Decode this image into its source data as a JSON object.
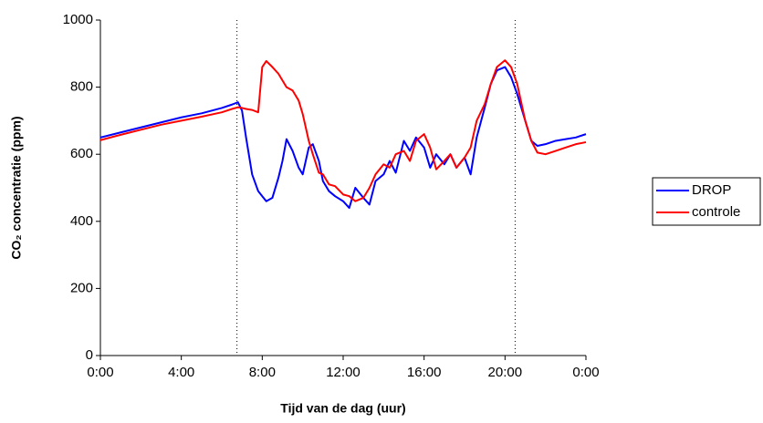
{
  "chart_data": {
    "type": "line",
    "xlabel": "Tijd van de dag (uur)",
    "ylabel": "CO₂ concentratie (ppm)",
    "x": [
      0,
      1,
      2,
      3,
      4,
      5,
      6,
      6.5,
      6.8,
      7.0,
      7.2,
      7.5,
      7.8,
      8.0,
      8.2,
      8.5,
      8.8,
      9.0,
      9.2,
      9.5,
      9.8,
      10.0,
      10.3,
      10.5,
      10.8,
      11.0,
      11.3,
      11.6,
      12.0,
      12.3,
      12.6,
      13.0,
      13.3,
      13.6,
      14.0,
      14.3,
      14.6,
      15.0,
      15.3,
      15.6,
      16.0,
      16.3,
      16.6,
      17.0,
      17.3,
      17.6,
      18.0,
      18.3,
      18.6,
      19.0,
      19.3,
      19.6,
      20.0,
      20.3,
      20.6,
      21.0,
      21.3,
      21.6,
      22.0,
      22.5,
      23.0,
      23.5,
      24
    ],
    "series": [
      {
        "name": "DROP",
        "color": "#0000ff",
        "values": [
          650,
          665,
          680,
          695,
          710,
          722,
          738,
          748,
          755,
          730,
          650,
          540,
          490,
          475,
          460,
          470,
          530,
          580,
          645,
          610,
          560,
          540,
          620,
          630,
          580,
          520,
          490,
          475,
          460,
          440,
          500,
          470,
          450,
          520,
          540,
          580,
          545,
          640,
          610,
          650,
          620,
          560,
          600,
          570,
          600,
          560,
          590,
          540,
          650,
          740,
          810,
          850,
          860,
          830,
          780,
          700,
          640,
          625,
          630,
          640,
          645,
          650,
          660
        ]
      },
      {
        "name": "controle",
        "color": "#ff0000",
        "values": [
          642,
          658,
          673,
          688,
          700,
          712,
          725,
          735,
          740,
          738,
          735,
          732,
          725,
          860,
          878,
          860,
          840,
          820,
          800,
          790,
          760,
          720,
          640,
          600,
          545,
          540,
          510,
          505,
          480,
          475,
          460,
          470,
          500,
          540,
          570,
          560,
          600,
          610,
          580,
          640,
          660,
          620,
          555,
          580,
          600,
          560,
          590,
          620,
          700,
          750,
          810,
          860,
          880,
          860,
          810,
          700,
          640,
          605,
          600,
          610,
          620,
          630,
          636
        ]
      }
    ],
    "vlines": [
      6.75,
      20.5
    ],
    "xlim": [
      0,
      24
    ],
    "xticks": [
      {
        "value": 0,
        "label": "0:00"
      },
      {
        "value": 4,
        "label": "4:00"
      },
      {
        "value": 8,
        "label": "8:00"
      },
      {
        "value": 12,
        "label": "12:00"
      },
      {
        "value": 16,
        "label": "16:00"
      },
      {
        "value": 20,
        "label": "20:00"
      },
      {
        "value": 24,
        "label": "0:00"
      }
    ],
    "ylim": [
      0,
      1000
    ],
    "yticks": [
      0,
      200,
      400,
      600,
      800,
      1000
    ],
    "grid": false,
    "legend": "right"
  }
}
